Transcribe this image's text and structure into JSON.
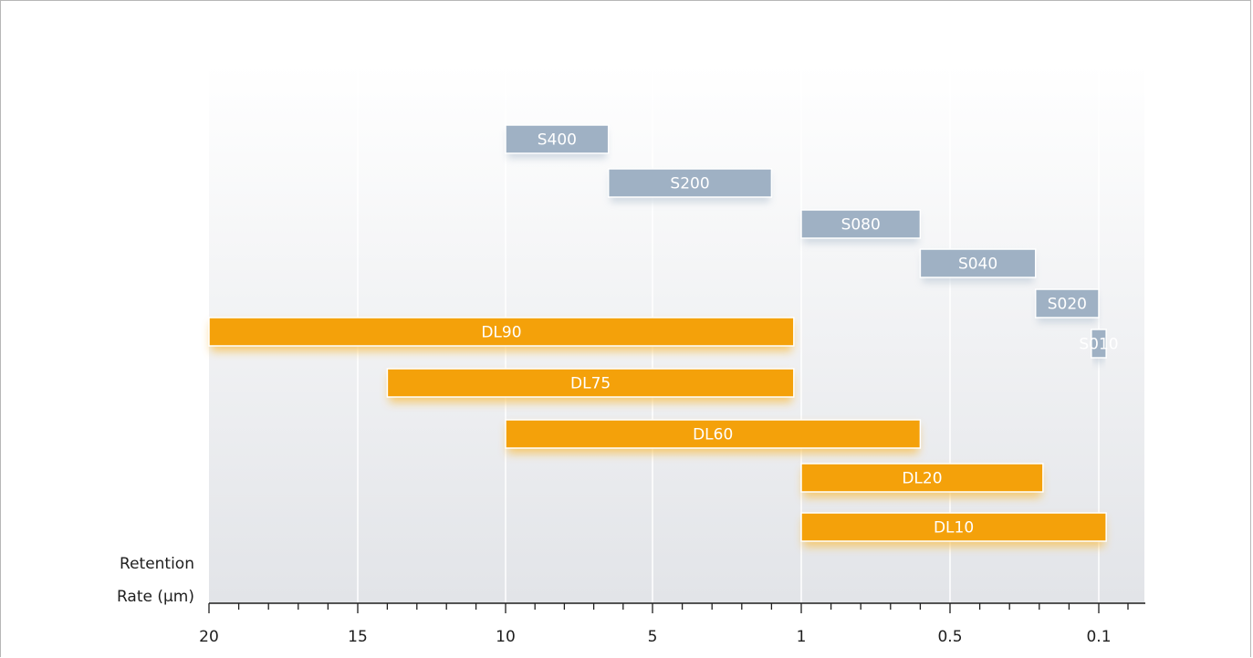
{
  "chart_data": {
    "type": "bar",
    "orientation": "horizontal-range",
    "xlabel": "Retention Rate (µm)",
    "ylabel": "",
    "title": "",
    "grid": true,
    "legend": "none",
    "x_tick_labels": [
      "20",
      "15",
      "10",
      "5",
      "1",
      "0.5",
      "0.1"
    ],
    "colors": {
      "grey_series": "#9fb1c4",
      "orange_series": "#f4a10a",
      "axis": "#1e1e1e"
    },
    "bars": [
      {
        "label": "S400",
        "from": "10",
        "to": "≈6.5",
        "color": "grey"
      },
      {
        "label": "S200",
        "from": "≈6.5",
        "to": "≈1.8",
        "color": "grey"
      },
      {
        "label": "S080",
        "from": "1",
        "to": "≈0.6",
        "color": "grey"
      },
      {
        "label": "S040",
        "from": "≈0.6",
        "to": "≈0.27",
        "color": "grey"
      },
      {
        "label": "S020",
        "from": "≈0.27",
        "to": "0.1",
        "color": "grey"
      },
      {
        "label": "S010",
        "from": "≈0.12",
        "to": "≈0.08",
        "color": "grey"
      },
      {
        "label": "DL90",
        "from": "20",
        "to": "≈1.2",
        "color": "orange"
      },
      {
        "label": "DL75",
        "from": "14",
        "to": "≈1.2",
        "color": "orange"
      },
      {
        "label": "DL60",
        "from": "10",
        "to": "≈0.6",
        "color": "orange"
      },
      {
        "label": "DL20",
        "from": "1",
        "to": "≈0.25",
        "color": "orange"
      },
      {
        "label": "DL10",
        "from": "1",
        "to": "≈0.08",
        "color": "orange"
      }
    ]
  }
}
